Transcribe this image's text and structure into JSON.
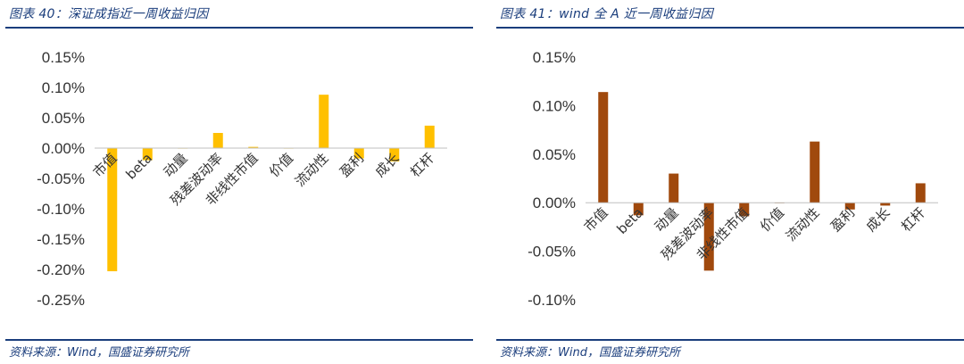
{
  "colors": {
    "left_bar": "#FFC000",
    "right_bar": "#A0490D",
    "header": "#1A3D7C",
    "axis": "#BFBFBF"
  },
  "left": {
    "title": "图表 40：深证成指近一周收益归因",
    "source": "资料来源：Wind，国盛证券研究所"
  },
  "right": {
    "title": "图表 41：wind 全 A 近一周收益归因",
    "source": "资料来源：Wind，国盛证券研究所"
  },
  "chart_data": [
    {
      "type": "bar",
      "categories": [
        "市值",
        "beta",
        "动量",
        "残差波动率",
        "非线性市值",
        "价值",
        "流动性",
        "盈利",
        "成长",
        "杠杆"
      ],
      "values": [
        -0.00203,
        -0.0002,
        0.0,
        0.00025,
        2e-05,
        0.0,
        0.00088,
        -0.00017,
        -0.00022,
        0.00037
      ],
      "title": "",
      "ylim": [
        -0.0025,
        0.0015
      ],
      "yticks": [
        0.0015,
        0.001,
        0.0005,
        0.0,
        -0.0005,
        -0.001,
        -0.0015,
        -0.002,
        -0.0025
      ],
      "ytick_labels": [
        "0.15%",
        "0.10%",
        "0.05%",
        "0.00%",
        "-0.05%",
        "-0.10%",
        "-0.15%",
        "-0.20%",
        "-0.25%"
      ],
      "grid": false
    },
    {
      "type": "bar",
      "categories": [
        "市值",
        "beta",
        "动量",
        "残差波动率",
        "非线性市值",
        "价值",
        "流动性",
        "盈利",
        "成长",
        "杠杆"
      ],
      "values": [
        0.00114,
        -0.00013,
        0.0003,
        -0.0007,
        -0.00014,
        0.0,
        0.00063,
        -7e-05,
        -3e-05,
        0.0002
      ],
      "title": "",
      "ylim": [
        -0.001,
        0.0015
      ],
      "yticks": [
        0.0015,
        0.001,
        0.0005,
        0.0,
        -0.0005,
        -0.001
      ],
      "ytick_labels": [
        "0.15%",
        "0.10%",
        "0.05%",
        "0.00%",
        "-0.05%",
        "-0.10%"
      ],
      "grid": false
    }
  ]
}
